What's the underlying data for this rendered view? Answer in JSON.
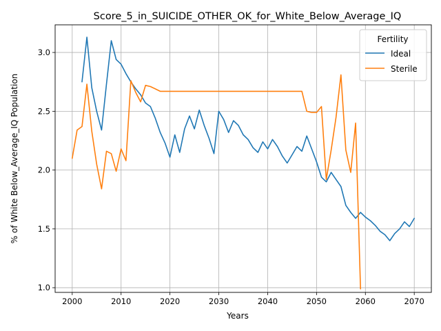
{
  "chart_data": {
    "type": "line",
    "title": "Score_5_in_SUICIDE_OTHER_OK_for_White_Below_Average_IQ",
    "xlabel": "Years",
    "ylabel": "% of White Below_Average_IQ Population",
    "xlim": [
      1996.5,
      2073.5
    ],
    "ylim": [
      0.96,
      3.235
    ],
    "xticks": [
      2000,
      2010,
      2020,
      2030,
      2040,
      2050,
      2060,
      2070
    ],
    "yticks": [
      1.0,
      1.5,
      2.0,
      2.5,
      3.0
    ],
    "xtick_labels": [
      "2000",
      "2010",
      "2020",
      "2030",
      "2040",
      "2050",
      "2060",
      "2070"
    ],
    "ytick_labels": [
      "1.0",
      "1.5",
      "2.0",
      "2.5",
      "3.0"
    ],
    "grid": true,
    "legend": {
      "title": "Fertility",
      "position": "top-right"
    },
    "series": [
      {
        "name": "Ideal",
        "color": "#1f77b4",
        "x": [
          2002,
          2003,
          2004,
          2005,
          2006,
          2007,
          2008,
          2009,
          2010,
          2011,
          2012,
          2013,
          2014,
          2015,
          2016,
          2017,
          2018,
          2019,
          2020,
          2021,
          2022,
          2023,
          2024,
          2025,
          2026,
          2027,
          2028,
          2029,
          2030,
          2031,
          2032,
          2033,
          2034,
          2035,
          2036,
          2037,
          2038,
          2039,
          2040,
          2041,
          2042,
          2043,
          2044,
          2045,
          2046,
          2047,
          2048,
          2049,
          2050,
          2051,
          2052,
          2053,
          2054,
          2055,
          2056,
          2057,
          2058,
          2059,
          2060,
          2061,
          2062,
          2063,
          2064,
          2065,
          2066,
          2067,
          2068,
          2069,
          2070
        ],
        "values": [
          2.75,
          3.13,
          2.7,
          2.5,
          2.34,
          2.73,
          3.1,
          2.94,
          2.9,
          2.82,
          2.75,
          2.69,
          2.64,
          2.57,
          2.54,
          2.44,
          2.32,
          2.23,
          2.11,
          2.3,
          2.15,
          2.35,
          2.46,
          2.35,
          2.51,
          2.38,
          2.27,
          2.14,
          2.5,
          2.43,
          2.32,
          2.42,
          2.38,
          2.3,
          2.26,
          2.19,
          2.15,
          2.24,
          2.18,
          2.26,
          2.2,
          2.12,
          2.06,
          2.13,
          2.2,
          2.16,
          2.29,
          2.18,
          2.07,
          1.94,
          1.9,
          1.98,
          1.92,
          1.86,
          1.7,
          1.64,
          1.59,
          1.64,
          1.6,
          1.57,
          1.53,
          1.48,
          1.45,
          1.4,
          1.46,
          1.5,
          1.56,
          1.52,
          1.59
        ]
      },
      {
        "name": "Sterile",
        "color": "#ff7f0e",
        "x": [
          2000,
          2001,
          2002,
          2003,
          2004,
          2005,
          2006,
          2007,
          2008,
          2009,
          2010,
          2011,
          2012,
          2013,
          2014,
          2015,
          2016,
          2017,
          2018,
          2019,
          2020,
          2021,
          2022,
          2023,
          2024,
          2025,
          2026,
          2027,
          2028,
          2029,
          2030,
          2031,
          2032,
          2033,
          2034,
          2035,
          2036,
          2037,
          2038,
          2039,
          2040,
          2041,
          2042,
          2043,
          2044,
          2045,
          2046,
          2047,
          2048,
          2049,
          2050,
          2051,
          2052,
          2053,
          2054,
          2055,
          2056,
          2057,
          2058,
          2059
        ],
        "values": [
          2.1,
          2.34,
          2.37,
          2.73,
          2.33,
          2.05,
          1.84,
          2.16,
          2.14,
          1.99,
          2.18,
          2.08,
          2.76,
          2.66,
          2.58,
          2.72,
          2.71,
          2.69,
          2.67,
          2.67,
          2.67,
          2.67,
          2.67,
          2.67,
          2.67,
          2.67,
          2.67,
          2.67,
          2.67,
          2.67,
          2.67,
          2.67,
          2.67,
          2.67,
          2.67,
          2.67,
          2.67,
          2.67,
          2.67,
          2.67,
          2.67,
          2.67,
          2.67,
          2.67,
          2.67,
          2.67,
          2.67,
          2.67,
          2.5,
          2.49,
          2.49,
          2.54,
          1.92,
          2.17,
          2.45,
          2.81,
          2.17,
          1.98,
          2.4,
          0.99
        ]
      }
    ]
  }
}
